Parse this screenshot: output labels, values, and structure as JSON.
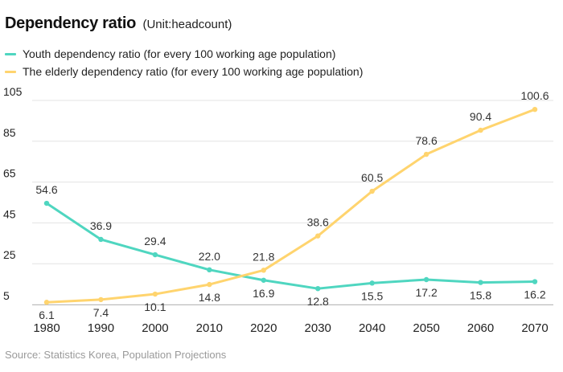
{
  "header": {
    "title": "Dependency ratio",
    "unit": "(Unit:headcount)"
  },
  "source": "Source: Statistics Korea, Population Projections",
  "chart_data": {
    "type": "line",
    "title": "Dependency ratio",
    "subtitle": "(Unit:headcount)",
    "xlabel": "",
    "ylabel": "",
    "categories": [
      "1980",
      "1990",
      "2000",
      "2010",
      "2020",
      "2030",
      "2040",
      "2050",
      "2060",
      "2070"
    ],
    "yticks": [
      5,
      25,
      45,
      65,
      85,
      105
    ],
    "ylim": [
      5,
      105
    ],
    "grid": true,
    "legend_position": "top-left",
    "series": [
      {
        "name": "Youth dependency ratio (for every 100 working age population)",
        "color": "#4fd6c0",
        "values": [
          54.6,
          36.9,
          29.4,
          22.0,
          16.9,
          12.8,
          15.5,
          17.2,
          15.8,
          16.2
        ],
        "labels": [
          "54.6",
          "36.9",
          "29.4",
          "22.0",
          "16.9",
          "12.8",
          "15.5",
          "17.2",
          "15.8",
          "16.2"
        ]
      },
      {
        "name": "The elderly dependency ratio (for every 100 working age population)",
        "color": "#ffd46e",
        "values": [
          6.1,
          7.4,
          10.1,
          14.8,
          21.8,
          38.6,
          60.5,
          78.6,
          90.4,
          100.6
        ],
        "labels": [
          "6.1",
          "7.4",
          "10.1",
          "14.8",
          "21.8",
          "38.6",
          "60.5",
          "78.6",
          "90.4",
          "100.6"
        ]
      }
    ]
  }
}
